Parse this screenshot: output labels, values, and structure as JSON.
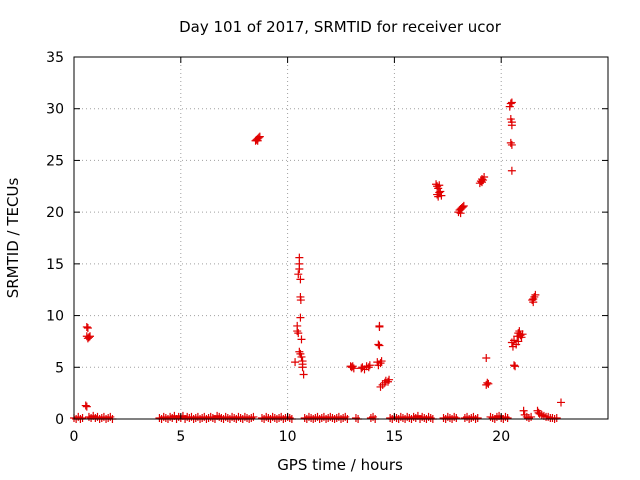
{
  "chart_data": {
    "type": "scatter",
    "title": "Day 101 of 2017, SRMTID for receiver ucor",
    "xlabel": "GPS time / hours",
    "ylabel": "SRMTID / TECUs",
    "xlim": [
      0,
      25
    ],
    "ylim": [
      0,
      35
    ],
    "xticks": [
      0,
      5,
      10,
      15,
      20
    ],
    "yticks": [
      0,
      5,
      10,
      15,
      20,
      25,
      30,
      35
    ],
    "grid": true,
    "marker": "plus",
    "color": "#e00000",
    "points": [
      [
        0.0,
        0.1
      ],
      [
        0.1,
        0.0
      ],
      [
        0.2,
        0.2
      ],
      [
        0.3,
        0.0
      ],
      [
        0.4,
        0.1
      ],
      [
        0.55,
        1.3
      ],
      [
        0.6,
        1.2
      ],
      [
        0.6,
        8.9
      ],
      [
        0.65,
        8.8
      ],
      [
        0.6,
        8.0
      ],
      [
        0.65,
        7.8
      ],
      [
        0.7,
        7.9
      ],
      [
        0.75,
        8.0
      ],
      [
        0.7,
        0.2
      ],
      [
        0.8,
        0.1
      ],
      [
        0.9,
        0.3
      ],
      [
        1.0,
        0.1
      ],
      [
        1.1,
        0.2
      ],
      [
        1.2,
        0.0
      ],
      [
        1.3,
        0.1
      ],
      [
        1.4,
        0.2
      ],
      [
        1.5,
        0.0
      ],
      [
        1.6,
        0.1
      ],
      [
        1.7,
        0.2
      ],
      [
        1.8,
        0.0
      ],
      [
        4.0,
        0.1
      ],
      [
        4.1,
        0.0
      ],
      [
        4.2,
        0.2
      ],
      [
        4.3,
        0.1
      ],
      [
        4.4,
        0.0
      ],
      [
        4.5,
        0.2
      ],
      [
        4.6,
        0.1
      ],
      [
        4.7,
        0.3
      ],
      [
        4.8,
        0.0
      ],
      [
        4.9,
        0.2
      ],
      [
        5.0,
        0.1
      ],
      [
        5.1,
        0.3
      ],
      [
        5.2,
        0.0
      ],
      [
        5.3,
        0.2
      ],
      [
        5.4,
        0.1
      ],
      [
        5.5,
        0.2
      ],
      [
        5.6,
        0.0
      ],
      [
        5.7,
        0.1
      ],
      [
        5.8,
        0.2
      ],
      [
        5.9,
        0.0
      ],
      [
        6.0,
        0.1
      ],
      [
        6.1,
        0.2
      ],
      [
        6.2,
        0.0
      ],
      [
        6.3,
        0.1
      ],
      [
        6.4,
        0.2
      ],
      [
        6.5,
        0.1
      ],
      [
        6.6,
        0.0
      ],
      [
        6.7,
        0.3
      ],
      [
        6.8,
        0.2
      ],
      [
        6.9,
        0.1
      ],
      [
        7.0,
        0.0
      ],
      [
        7.1,
        0.2
      ],
      [
        7.2,
        0.1
      ],
      [
        7.3,
        0.0
      ],
      [
        7.4,
        0.2
      ],
      [
        7.5,
        0.1
      ],
      [
        7.6,
        0.0
      ],
      [
        7.7,
        0.2
      ],
      [
        7.8,
        0.1
      ],
      [
        7.9,
        0.0
      ],
      [
        8.0,
        0.2
      ],
      [
        8.1,
        0.1
      ],
      [
        8.2,
        0.0
      ],
      [
        8.3,
        0.1
      ],
      [
        8.4,
        0.2
      ],
      [
        8.5,
        26.9
      ],
      [
        8.55,
        27.0
      ],
      [
        8.6,
        27.1
      ],
      [
        8.65,
        27.2
      ],
      [
        8.7,
        27.3
      ],
      [
        8.6,
        26.9
      ],
      [
        8.8,
        0.1
      ],
      [
        8.9,
        0.0
      ],
      [
        9.0,
        0.2
      ],
      [
        9.1,
        0.1
      ],
      [
        9.2,
        0.0
      ],
      [
        9.3,
        0.2
      ],
      [
        9.4,
        0.1
      ],
      [
        9.5,
        0.0
      ],
      [
        9.6,
        0.1
      ],
      [
        9.7,
        0.2
      ],
      [
        9.8,
        0.0
      ],
      [
        9.9,
        0.1
      ],
      [
        10.0,
        0.2
      ],
      [
        10.1,
        0.1
      ],
      [
        10.2,
        0.0
      ],
      [
        10.35,
        5.5
      ],
      [
        10.45,
        8.5
      ],
      [
        10.45,
        9.0
      ],
      [
        10.5,
        8.3
      ],
      [
        10.5,
        14.0
      ],
      [
        10.55,
        14.5
      ],
      [
        10.55,
        15.0
      ],
      [
        10.55,
        15.6
      ],
      [
        10.6,
        13.5
      ],
      [
        10.6,
        11.8
      ],
      [
        10.62,
        11.5
      ],
      [
        10.6,
        9.8
      ],
      [
        10.65,
        7.7
      ],
      [
        10.55,
        6.5
      ],
      [
        10.6,
        6.3
      ],
      [
        10.65,
        6.0
      ],
      [
        10.7,
        5.6
      ],
      [
        10.7,
        5.3
      ],
      [
        10.7,
        5.0
      ],
      [
        10.75,
        4.3
      ],
      [
        10.8,
        0.1
      ],
      [
        10.9,
        0.0
      ],
      [
        11.0,
        0.2
      ],
      [
        11.1,
        0.1
      ],
      [
        11.2,
        0.0
      ],
      [
        11.3,
        0.1
      ],
      [
        11.4,
        0.2
      ],
      [
        11.5,
        0.0
      ],
      [
        11.6,
        0.1
      ],
      [
        11.7,
        0.2
      ],
      [
        11.8,
        0.0
      ],
      [
        11.9,
        0.1
      ],
      [
        12.0,
        0.2
      ],
      [
        12.1,
        0.1
      ],
      [
        12.2,
        0.0
      ],
      [
        12.3,
        0.1
      ],
      [
        12.4,
        0.2
      ],
      [
        12.5,
        0.0
      ],
      [
        12.6,
        0.1
      ],
      [
        12.7,
        0.2
      ],
      [
        12.8,
        0.0
      ],
      [
        12.95,
        5.1
      ],
      [
        13.0,
        5.0
      ],
      [
        13.05,
        5.1
      ],
      [
        13.1,
        4.9
      ],
      [
        13.2,
        0.1
      ],
      [
        13.3,
        0.0
      ],
      [
        13.45,
        4.9
      ],
      [
        13.5,
        5.0
      ],
      [
        13.6,
        4.8
      ],
      [
        13.7,
        5.1
      ],
      [
        13.8,
        5.0
      ],
      [
        13.85,
        5.2
      ],
      [
        13.9,
        0.1
      ],
      [
        14.0,
        0.2
      ],
      [
        14.1,
        0.0
      ],
      [
        14.2,
        5.5
      ],
      [
        14.25,
        5.2
      ],
      [
        14.3,
        9.0
      ],
      [
        14.3,
        8.9
      ],
      [
        14.25,
        7.2
      ],
      [
        14.3,
        7.1
      ],
      [
        14.35,
        5.4
      ],
      [
        14.4,
        5.6
      ],
      [
        14.35,
        3.1
      ],
      [
        14.45,
        3.3
      ],
      [
        14.55,
        3.5
      ],
      [
        14.6,
        3.7
      ],
      [
        14.7,
        3.6
      ],
      [
        14.75,
        3.8
      ],
      [
        14.8,
        0.1
      ],
      [
        14.9,
        0.0
      ],
      [
        15.0,
        0.2
      ],
      [
        15.1,
        0.1
      ],
      [
        15.2,
        0.0
      ],
      [
        15.3,
        0.2
      ],
      [
        15.4,
        0.1
      ],
      [
        15.5,
        0.0
      ],
      [
        15.6,
        0.2
      ],
      [
        15.7,
        0.1
      ],
      [
        15.8,
        0.0
      ],
      [
        15.9,
        0.2
      ],
      [
        16.0,
        0.1
      ],
      [
        16.1,
        0.3
      ],
      [
        16.2,
        0.0
      ],
      [
        16.3,
        0.2
      ],
      [
        16.4,
        0.1
      ],
      [
        16.5,
        0.0
      ],
      [
        16.6,
        0.2
      ],
      [
        16.7,
        0.1
      ],
      [
        16.8,
        0.0
      ],
      [
        16.95,
        22.7
      ],
      [
        17.0,
        22.5
      ],
      [
        17.05,
        22.3
      ],
      [
        17.1,
        22.6
      ],
      [
        17.0,
        21.7
      ],
      [
        17.05,
        21.5
      ],
      [
        17.1,
        21.9
      ],
      [
        17.15,
        22.0
      ],
      [
        17.2,
        21.6
      ],
      [
        17.3,
        0.1
      ],
      [
        17.4,
        0.0
      ],
      [
        17.5,
        0.2
      ],
      [
        17.6,
        0.1
      ],
      [
        17.7,
        0.0
      ],
      [
        17.8,
        0.2
      ],
      [
        17.9,
        0.1
      ],
      [
        18.0,
        20.0
      ],
      [
        18.05,
        20.2
      ],
      [
        18.1,
        20.3
      ],
      [
        18.15,
        20.4
      ],
      [
        18.2,
        20.5
      ],
      [
        18.1,
        19.9
      ],
      [
        18.25,
        20.6
      ],
      [
        18.3,
        0.1
      ],
      [
        18.4,
        0.2
      ],
      [
        18.5,
        0.0
      ],
      [
        18.6,
        0.1
      ],
      [
        18.7,
        0.2
      ],
      [
        18.8,
        0.0
      ],
      [
        18.9,
        0.1
      ],
      [
        19.0,
        22.8
      ],
      [
        19.05,
        23.0
      ],
      [
        19.1,
        23.2
      ],
      [
        19.15,
        23.1
      ],
      [
        19.2,
        23.4
      ],
      [
        19.1,
        22.9
      ],
      [
        19.3,
        5.9
      ],
      [
        19.3,
        3.3
      ],
      [
        19.35,
        3.5
      ],
      [
        19.4,
        3.4
      ],
      [
        19.5,
        0.2
      ],
      [
        19.6,
        0.1
      ],
      [
        19.7,
        0.0
      ],
      [
        19.8,
        0.2
      ],
      [
        19.9,
        0.3
      ],
      [
        20.0,
        0.1
      ],
      [
        20.1,
        0.0
      ],
      [
        20.2,
        0.2
      ],
      [
        20.3,
        0.1
      ],
      [
        20.4,
        30.2
      ],
      [
        20.45,
        30.5
      ],
      [
        20.5,
        30.6
      ],
      [
        20.45,
        29.0
      ],
      [
        20.5,
        28.7
      ],
      [
        20.5,
        28.4
      ],
      [
        20.45,
        26.7
      ],
      [
        20.5,
        26.5
      ],
      [
        20.5,
        24.0
      ],
      [
        20.5,
        7.4
      ],
      [
        20.55,
        7.0
      ],
      [
        20.6,
        7.6
      ],
      [
        20.6,
        5.2
      ],
      [
        20.65,
        5.1
      ],
      [
        20.7,
        7.2
      ],
      [
        20.75,
        8.0
      ],
      [
        20.8,
        8.3
      ],
      [
        20.85,
        8.5
      ],
      [
        20.9,
        8.1
      ],
      [
        20.95,
        7.9
      ],
      [
        21.0,
        8.2
      ],
      [
        20.8,
        7.5
      ],
      [
        21.05,
        0.8
      ],
      [
        21.1,
        0.4
      ],
      [
        21.2,
        0.2
      ],
      [
        21.3,
        0.1
      ],
      [
        21.4,
        0.2
      ],
      [
        21.45,
        11.5
      ],
      [
        21.5,
        11.3
      ],
      [
        21.55,
        11.8
      ],
      [
        21.6,
        12.0
      ],
      [
        21.5,
        11.6
      ],
      [
        21.7,
        0.8
      ],
      [
        21.75,
        0.6
      ],
      [
        21.8,
        0.5
      ],
      [
        21.9,
        0.4
      ],
      [
        22.0,
        0.3
      ],
      [
        22.1,
        0.2
      ],
      [
        22.2,
        0.2
      ],
      [
        22.3,
        0.1
      ],
      [
        22.4,
        0.1
      ],
      [
        22.5,
        0.0
      ],
      [
        22.6,
        0.1
      ],
      [
        22.8,
        1.6
      ]
    ]
  }
}
